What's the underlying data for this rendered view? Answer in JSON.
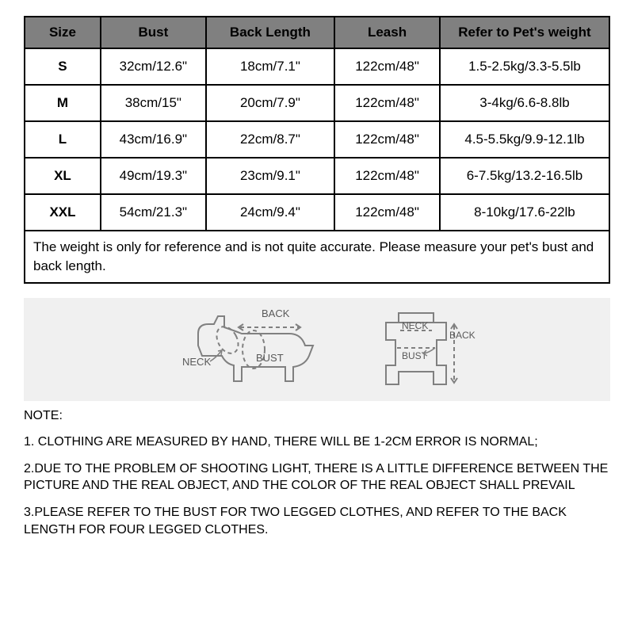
{
  "table": {
    "header_bg": "#808080",
    "border_color": "#000000",
    "columns": [
      "Size",
      "Bust",
      "Back Length",
      "Leash",
      "Refer to Pet's weight"
    ],
    "col_widths_pct": [
      13,
      18,
      22,
      18,
      29
    ],
    "rows": [
      [
        "S",
        "32cm/12.6\"",
        "18cm/7.1\"",
        "122cm/48\"",
        "1.5-2.5kg/3.3-5.5lb"
      ],
      [
        "M",
        "38cm/15\"",
        "20cm/7.9\"",
        "122cm/48\"",
        "3-4kg/6.6-8.8lb"
      ],
      [
        "L",
        "43cm/16.9\"",
        "22cm/8.7\"",
        "122cm/48\"",
        "4.5-5.5kg/9.9-12.1lb"
      ],
      [
        "XL",
        "49cm/19.3\"",
        "23cm/9.1\"",
        "122cm/48\"",
        "6-7.5kg/13.2-16.5lb"
      ],
      [
        "XXL",
        "54cm/21.3\"",
        "24cm/9.4\"",
        "122cm/48\"",
        "8-10kg/17.6-22lb"
      ]
    ],
    "footnote": "The weight is only for reference and is not quite accurate. Please measure your pet's bust and back length."
  },
  "diagram": {
    "bg": "#f0f0f0",
    "outline_color": "#808080",
    "dash_color": "#808080",
    "label_color": "#595959",
    "label_font_size": 13,
    "labels": {
      "back": "BACK",
      "neck": "NECK",
      "bust": "BUST"
    }
  },
  "notes": {
    "heading": "NOTE:",
    "items": [
      "1. CLOTHING ARE MEASURED BY HAND, THERE WILL BE 1-2CM ERROR IS NORMAL;",
      "2.DUE TO THE PROBLEM OF SHOOTING LIGHT, THERE IS A LITTLE DIFFERENCE BETWEEN THE PICTURE AND THE REAL OBJECT, AND THE COLOR OF THE REAL OBJECT SHALL PREVAIL",
      "3.PLEASE REFER TO THE BUST FOR TWO LEGGED CLOTHES, AND REFER TO THE BACK LENGTH FOR FOUR LEGGED CLOTHES."
    ]
  }
}
